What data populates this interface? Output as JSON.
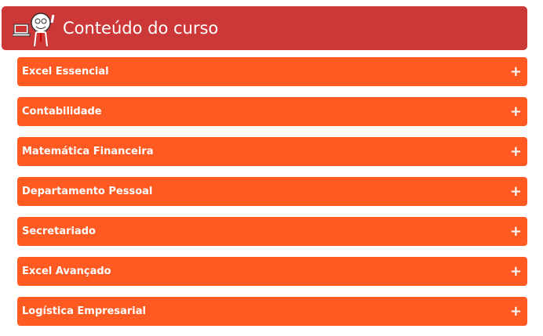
{
  "header": {
    "title": "Conteúdo do curso",
    "logo_icon": "mascot-with-laptop-icon"
  },
  "colors": {
    "header": "#cb3837",
    "item": "#ff5a22"
  },
  "items": [
    {
      "label": "Excel Essencial",
      "icon": "+"
    },
    {
      "label": "Contabilidade",
      "icon": "+"
    },
    {
      "label": "Matemática Financeira",
      "icon": "+"
    },
    {
      "label": "Departamento Pessoal",
      "icon": "+"
    },
    {
      "label": "Secretariado",
      "icon": "+"
    },
    {
      "label": "Excel Avançado",
      "icon": "+"
    },
    {
      "label": "Logística Empresarial",
      "icon": "+"
    }
  ]
}
